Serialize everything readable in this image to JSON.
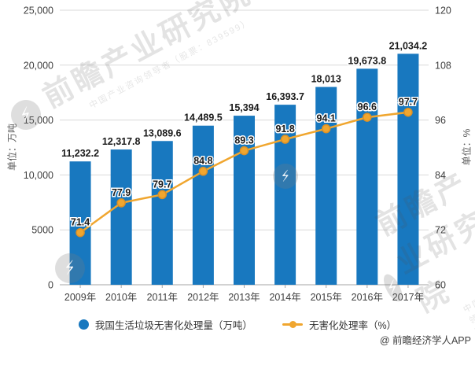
{
  "chart_data": {
    "type": "bar",
    "combo": "bar+line",
    "categories": [
      "2009年",
      "2010年",
      "2011年",
      "2012年",
      "2013年",
      "2014年",
      "2015年",
      "2016年",
      "2017年"
    ],
    "series": [
      {
        "name": "我国生活垃圾无害化处理量（万吨）",
        "type": "bar",
        "axis": "left",
        "color": "#1878BF",
        "values": [
          11232.2,
          12317.8,
          13089.6,
          14489.5,
          15394,
          16393.7,
          18013,
          19673.8,
          21034.2
        ],
        "labels": [
          "11,232.2",
          "12,317.8",
          "13,089.6",
          "14,489.5",
          "15,394",
          "16,393.7",
          "18,013",
          "19,673.8",
          "21,034.2"
        ]
      },
      {
        "name": "无害化处理率（%）",
        "type": "line",
        "axis": "right",
        "color": "#F0A62F",
        "marker_stroke": "#DD9125",
        "values": [
          71.4,
          77.9,
          79.7,
          84.8,
          89.3,
          91.8,
          94.1,
          96.6,
          97.7
        ],
        "labels": [
          "71.4",
          "77.9",
          "79.7",
          "84.8",
          "89.3",
          "91.8",
          "94.1",
          "96.6",
          "97.7"
        ]
      }
    ],
    "left_axis": {
      "title": "单位：万吨",
      "min": 0,
      "max": 25000,
      "step": 5000,
      "tick_labels": [
        "0",
        "5000",
        "10,000",
        "15,000",
        "20,000",
        "25,000"
      ]
    },
    "right_axis": {
      "title": "单位：%",
      "min": 60,
      "max": 120,
      "step": 12,
      "tick_labels": [
        "60",
        "72",
        "84",
        "96",
        "108",
        "120"
      ]
    },
    "grid": true,
    "legend_position": "bottom",
    "colors": {
      "gridline": "#D9D9D9",
      "axis_line": "#A6A6A6",
      "tick_text": "#404040",
      "data_label": "#1A1A1A"
    }
  },
  "watermark": {
    "brand": "前瞻产业研究院",
    "subtext": "中国产业咨询领导者（股票：839599）",
    "logo_glyph": "⚡"
  },
  "source": {
    "credit": "@ 前瞻经济学人APP"
  }
}
